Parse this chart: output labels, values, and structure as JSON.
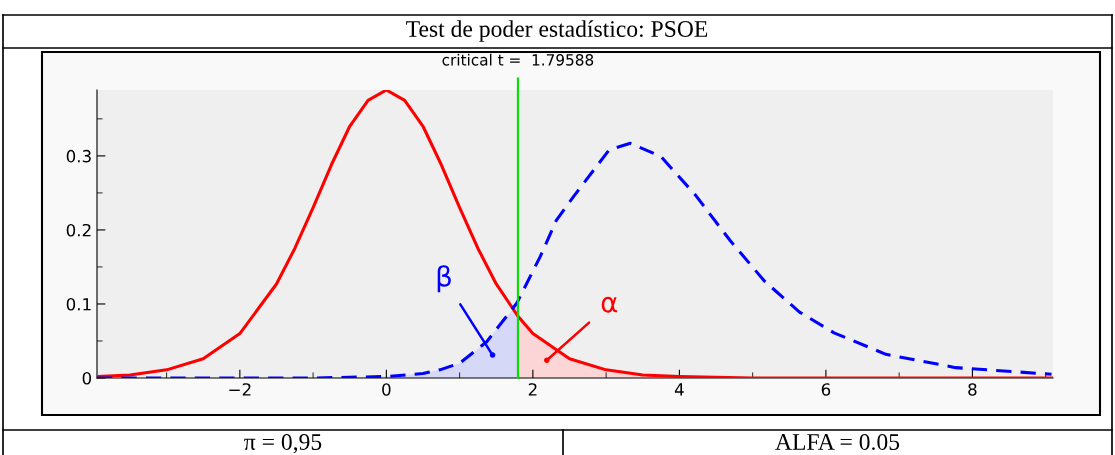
{
  "chart_data": {
    "type": "line",
    "title": "Test de poder estadístico: PSOE",
    "xlim": [
      -3.95,
      9.1
    ],
    "ylim": [
      0,
      0.389
    ],
    "xticks": [
      {
        "value": -2,
        "label": "−2"
      },
      0,
      2,
      4,
      6,
      8
    ],
    "yticks": [
      0,
      0.1,
      0.2,
      0.3
    ],
    "grid": false,
    "series": [
      {
        "type": "area",
        "color": "#d6d8f8",
        "x": [
          -3.95,
          -2,
          -1,
          0,
          0.5,
          0.73,
          1,
          1.37,
          1.79588
        ],
        "values": [
          0,
          0,
          0,
          0.002,
          0.006,
          0.011,
          0.02,
          0.049,
          0.101
        ]
      },
      {
        "type": "area",
        "color": "#fcd6d6",
        "x": [
          1.79588,
          2,
          2.5,
          3,
          3.5,
          4,
          5,
          9.1
        ],
        "values": [
          0.083,
          0.06,
          0.026,
          0.011,
          0.004,
          0.002,
          0,
          0
        ]
      },
      {
        "color": "#ff0000",
        "line_style": "solid",
        "x": [
          -3.95,
          -3.5,
          -3,
          -2.5,
          -2,
          -1.5,
          -1.25,
          -1,
          -0.75,
          -0.5,
          -0.25,
          0,
          0.25,
          0.5,
          0.75,
          1,
          1.25,
          1.5,
          1.8,
          2,
          2.5,
          3,
          3.5,
          4,
          5,
          9.1
        ],
        "values": [
          0.002,
          0.004,
          0.011,
          0.026,
          0.06,
          0.127,
          0.175,
          0.23,
          0.288,
          0.34,
          0.375,
          0.389,
          0.375,
          0.34,
          0.288,
          0.23,
          0.175,
          0.127,
          0.083,
          0.06,
          0.026,
          0.011,
          0.004,
          0.002,
          0,
          0
        ]
      },
      {
        "color": "#0000ff",
        "line_style": "dashed",
        "x": [
          -3.95,
          -2,
          -1,
          0,
          0.5,
          0.73,
          1,
          1.37,
          1.78,
          2.1,
          2.32,
          2.57,
          3.04,
          3.33,
          3.75,
          4.22,
          4.69,
          5.16,
          5.64,
          6.11,
          6.82,
          7.77,
          9.08
        ],
        "values": [
          0,
          0,
          0,
          0.002,
          0.006,
          0.011,
          0.02,
          0.049,
          0.101,
          0.164,
          0.213,
          0.247,
          0.308,
          0.317,
          0.299,
          0.247,
          0.186,
          0.131,
          0.089,
          0.061,
          0.032,
          0.014,
          0.005
        ]
      }
    ],
    "ref_lines": [
      {
        "axis": "x",
        "value": 1.79588,
        "label": "critical t =  1.79588",
        "color": "#00e000"
      }
    ],
    "annotations": [
      {
        "text": "β",
        "x": 1.45,
        "y": 0.031
      },
      {
        "text": "α",
        "x": 2.19,
        "y": 0.024
      },
      "π = 0,95",
      "ALFA = 0.05"
    ]
  }
}
